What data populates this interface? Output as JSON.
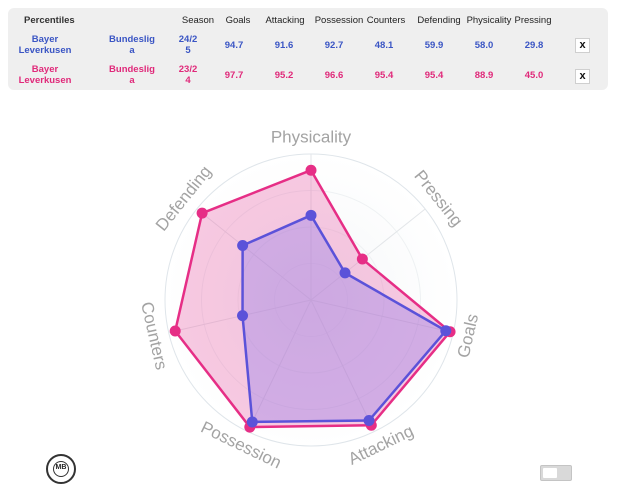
{
  "table": {
    "headers": [
      "Percentiles",
      "Season",
      "Goals",
      "Attacking",
      "Possession",
      "Counters",
      "Defending",
      "Physicality",
      "Pressing"
    ],
    "rows": [
      {
        "team_line1": "Bayer",
        "team_line2": "Leverkusen",
        "league_line1": "Bundeslig",
        "league_line2": "a",
        "season_line1": "24/2",
        "season_line2": "5",
        "goals": "94.7",
        "attacking": "91.6",
        "possession": "92.7",
        "counters": "48.1",
        "defending": "59.9",
        "physicality": "58.0",
        "pressing": "29.8",
        "close_label": "x"
      },
      {
        "team_line1": "Bayer",
        "team_line2": "Leverkusen",
        "league_line1": "Bundeslig",
        "league_line2": "a",
        "season_line1": "23/2",
        "season_line2": "4",
        "goals": "97.7",
        "attacking": "95.2",
        "possession": "96.6",
        "counters": "95.4",
        "defending": "95.4",
        "physicality": "88.9",
        "pressing": "45.0",
        "close_label": "x"
      }
    ]
  },
  "chart_data": {
    "type": "radar",
    "axes": [
      "Physicality",
      "Pressing",
      "Goals",
      "Attacking",
      "Possession",
      "Counters",
      "Defending"
    ],
    "range": [
      0,
      100
    ],
    "series": [
      {
        "name": "Bayer Leverkusen Bundesliga 24/25",
        "color": "#5b52d9",
        "fill": "rgba(140,120,235,0.35)",
        "values": [
          58.0,
          29.8,
          94.7,
          91.6,
          92.7,
          48.1,
          59.9
        ]
      },
      {
        "name": "Bayer Leverkusen Bundesliga 23/24",
        "color": "#e62e86",
        "fill": "rgba(232,80,160,0.30)",
        "values": [
          88.9,
          45.0,
          97.7,
          95.2,
          96.6,
          95.4,
          95.4
        ]
      }
    ]
  },
  "logo": {
    "text": "MB"
  },
  "icons": {
    "logo": "mb-logo-icon",
    "toggle": "toggle-switch-icon"
  }
}
